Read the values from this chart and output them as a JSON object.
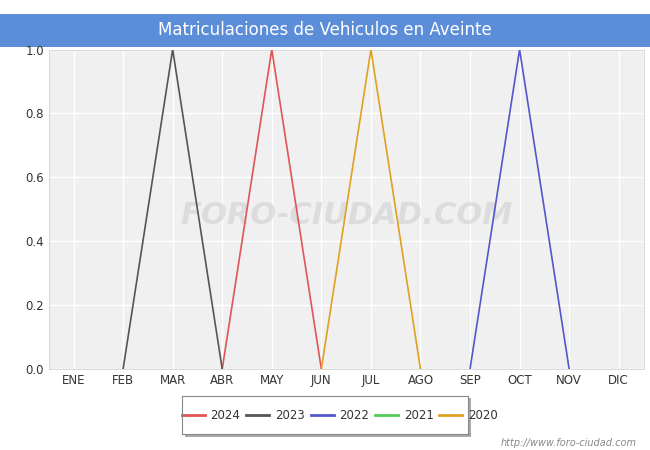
{
  "title": "Matriculaciones de Vehiculos en Aveinte",
  "title_bg_color": "#5b8dd9",
  "title_text_color": "#ffffff",
  "months": [
    "ENE",
    "FEB",
    "MAR",
    "ABR",
    "MAY",
    "JUN",
    "JUL",
    "AGO",
    "SEP",
    "OCT",
    "NOV",
    "DIC"
  ],
  "series": [
    {
      "year": "2024",
      "color": "#e05555",
      "data": [
        [
          4,
          0.0
        ],
        [
          5,
          1.0
        ],
        [
          6,
          0.0
        ]
      ]
    },
    {
      "year": "2023",
      "color": "#555555",
      "data": [
        [
          2,
          0.0
        ],
        [
          3,
          1.0
        ],
        [
          4,
          0.0
        ]
      ]
    },
    {
      "year": "2022",
      "color": "#5555cc",
      "data": [
        [
          9,
          0.0
        ],
        [
          10,
          1.0
        ],
        [
          11,
          0.0
        ]
      ]
    },
    {
      "year": "2021",
      "color": "#55cc55",
      "data": []
    },
    {
      "year": "2020",
      "color": "#e0a020",
      "data": [
        [
          6,
          0.0
        ],
        [
          7,
          1.0
        ],
        [
          8,
          0.0
        ]
      ]
    }
  ],
  "ylim": [
    0.0,
    1.0
  ],
  "bg_color": "#ffffff",
  "plot_bg_color": "#f0f0f0",
  "grid_color": "#ffffff",
  "watermark_plot": "FORO-CIUDAD.COM",
  "watermark_url": "http://www.foro-ciudad.com",
  "legend_years": [
    "2024",
    "2023",
    "2022",
    "2021",
    "2020"
  ],
  "legend_colors": [
    "#e05555",
    "#555555",
    "#5555cc",
    "#55cc55",
    "#e0a020"
  ]
}
